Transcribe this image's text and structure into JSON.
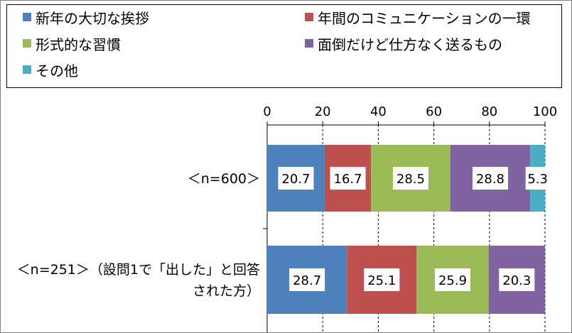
{
  "chart_data": {
    "type": "bar",
    "orientation": "horizontal",
    "stacked": true,
    "categories": [
      "＜n=600＞",
      "＜n=251＞（設問1で「出した」と回答された方）"
    ],
    "category_lines": [
      [
        "＜n=600＞"
      ],
      [
        "＜n=251＞（設問1で「出した」と回答",
        "された方）"
      ]
    ],
    "series": [
      {
        "name": "新年の大切な挨拶",
        "color": "#4f81bd",
        "values": [
          20.7,
          28.7
        ]
      },
      {
        "name": "年間のコミュニケーションの一環",
        "color": "#c0504d",
        "values": [
          16.7,
          25.1
        ]
      },
      {
        "name": "形式的な習慣",
        "color": "#9bbb59",
        "values": [
          28.5,
          25.9
        ]
      },
      {
        "name": "面倒だけど仕方なく送るもの",
        "color": "#8064a2",
        "values": [
          28.8,
          20.3
        ]
      },
      {
        "name": "その他",
        "color": "#4bacc6",
        "values": [
          5.3,
          null
        ]
      }
    ],
    "xlim": [
      0,
      100
    ],
    "xticks": [
      0,
      20,
      40,
      60,
      80,
      100
    ],
    "grid": "vertical-dashed",
    "legend": "top",
    "title": "",
    "xlabel": "",
    "ylabel": ""
  }
}
